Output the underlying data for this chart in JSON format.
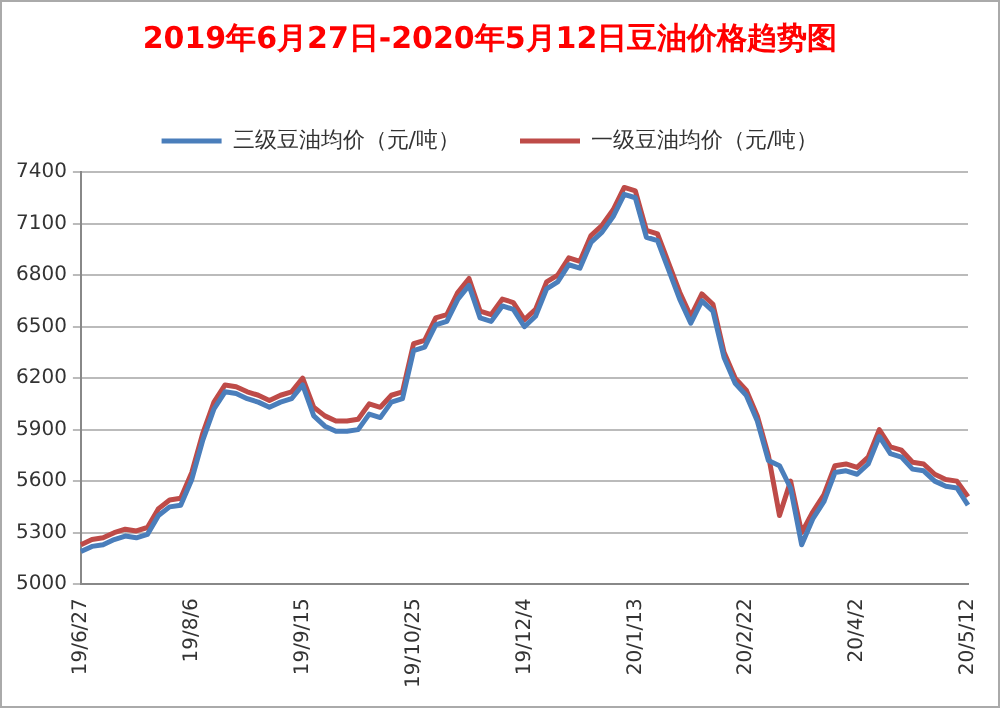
{
  "chart_data": {
    "type": "line",
    "title": "2019年6月27日-2020年5月12日豆油价格趋势图",
    "categories": [
      "19/6/27",
      null,
      null,
      null,
      null,
      null,
      null,
      null,
      null,
      null,
      "19/8/6",
      null,
      null,
      null,
      null,
      null,
      null,
      null,
      null,
      null,
      "19/9/15",
      null,
      null,
      null,
      null,
      null,
      null,
      null,
      null,
      null,
      "19/10/25",
      null,
      null,
      null,
      null,
      null,
      null,
      null,
      null,
      null,
      "19/12/4",
      null,
      null,
      null,
      null,
      null,
      null,
      null,
      null,
      null,
      "20/1/13",
      null,
      null,
      null,
      null,
      null,
      null,
      null,
      null,
      null,
      "20/2/22",
      null,
      null,
      null,
      null,
      null,
      null,
      null,
      null,
      null,
      "20/4/2",
      null,
      null,
      null,
      null,
      null,
      null,
      null,
      null,
      null,
      "20/5/12"
    ],
    "series": [
      {
        "name": "三级豆油均价（元/吨）",
        "color": "#4a7ebb",
        "values": [
          5190,
          5220,
          5230,
          5260,
          5280,
          5270,
          5290,
          5400,
          5450,
          5460,
          5610,
          5840,
          6020,
          6120,
          6110,
          6080,
          6060,
          6030,
          6060,
          6080,
          6160,
          5980,
          5920,
          5890,
          5890,
          5900,
          5990,
          5970,
          6060,
          6080,
          6360,
          6380,
          6510,
          6530,
          6660,
          6740,
          6550,
          6530,
          6620,
          6600,
          6500,
          6560,
          6720,
          6760,
          6860,
          6840,
          6990,
          7050,
          7140,
          7270,
          7250,
          7020,
          7000,
          6830,
          6660,
          6520,
          6650,
          6590,
          6320,
          6170,
          6100,
          5950,
          5720,
          5690,
          5560,
          5230,
          5380,
          5480,
          5650,
          5660,
          5640,
          5700,
          5860,
          5760,
          5740,
          5670,
          5660,
          5600,
          5570,
          5560,
          5460
        ]
      },
      {
        "name": "一级豆油均价（元/吨）",
        "color": "#be4b48",
        "values": [
          5230,
          5260,
          5270,
          5300,
          5320,
          5310,
          5330,
          5440,
          5490,
          5500,
          5650,
          5880,
          6060,
          6160,
          6150,
          6120,
          6100,
          6070,
          6100,
          6120,
          6200,
          6030,
          5980,
          5950,
          5950,
          5960,
          6050,
          6030,
          6100,
          6120,
          6400,
          6420,
          6550,
          6570,
          6700,
          6780,
          6590,
          6570,
          6660,
          6640,
          6540,
          6600,
          6760,
          6800,
          6900,
          6880,
          7030,
          7090,
          7180,
          7310,
          7290,
          7060,
          7040,
          6870,
          6700,
          6560,
          6690,
          6630,
          6350,
          6200,
          6130,
          5980,
          5750,
          5400,
          5600,
          5300,
          5420,
          5520,
          5690,
          5700,
          5680,
          5740,
          5900,
          5800,
          5780,
          5710,
          5700,
          5640,
          5610,
          5600,
          5510
        ]
      }
    ],
    "ylim": [
      5000,
      7400
    ],
    "yticks": [
      5000,
      5300,
      5600,
      5900,
      6200,
      6500,
      6800,
      7100,
      7400
    ],
    "grid": "y",
    "legend": "top",
    "marker": "none",
    "line_style": "solid"
  }
}
